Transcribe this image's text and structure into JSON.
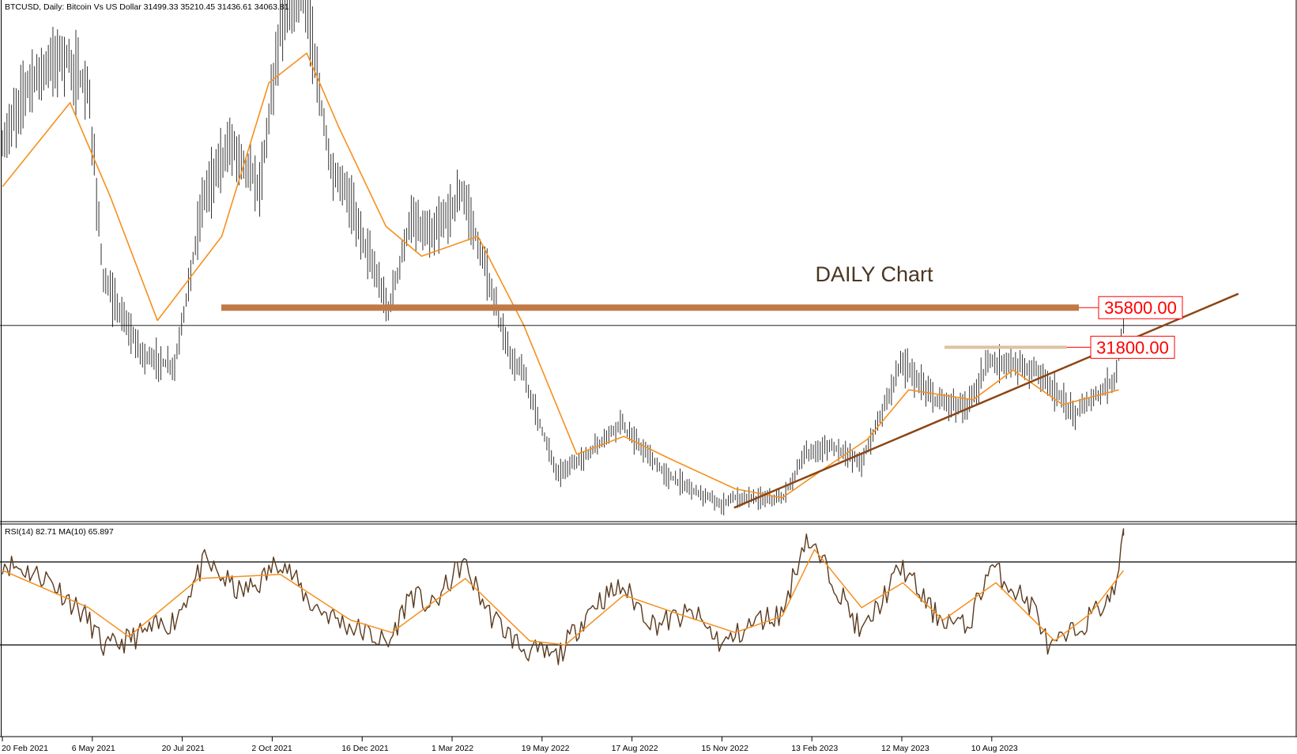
{
  "header": {
    "symbol_text": "BTCUSD, Daily:  Bitcoin Vs US Dollar  31499.33 35210.45 31436.61 34063.81"
  },
  "annotation": {
    "title": "DAILY Chart"
  },
  "levels": [
    {
      "label": "35800.00",
      "value": 35800,
      "color": "#c17a45"
    },
    {
      "label": "31800.00",
      "value": 31800,
      "color": "#dcc3a3"
    }
  ],
  "rsi_panel": {
    "header_text": "RSI(14) 82.71 MA(10) 65.897",
    "upper_level": 70,
    "lower_level": 30
  },
  "colors": {
    "bars": "#333333",
    "ma": "#f5901e",
    "trendline": "#8b4513",
    "rsi": "#5a3a1e",
    "label_text": "#ff0000"
  },
  "chart_data": {
    "type": "line",
    "x_tick_labels": [
      "20 Feb 2021",
      "6 May 2021",
      "20 Jul 2021",
      "2 Oct 2021",
      "16 Dec 2021",
      "1 Mar 2022",
      "19 May 2022",
      "17 Aug 2022",
      "15 Nov 2022",
      "13 Feb 2023",
      "12 May 2023",
      "10 Aug 2023"
    ],
    "price_series": {
      "dates": [
        "2021-02-20",
        "2021-03-14",
        "2021-04-14",
        "2021-05-06",
        "2021-05-19",
        "2021-06-22",
        "2021-07-20",
        "2021-08-14",
        "2021-09-07",
        "2021-10-02",
        "2021-10-20",
        "2021-11-10",
        "2021-12-04",
        "2021-12-16",
        "2022-01-22",
        "2022-02-10",
        "2022-03-01",
        "2022-03-28",
        "2022-05-09",
        "2022-05-19",
        "2022-06-18",
        "2022-07-15",
        "2022-08-14",
        "2022-08-17",
        "2022-09-20",
        "2022-11-09",
        "2022-11-15",
        "2022-12-31",
        "2023-01-20",
        "2023-02-13",
        "2023-03-10",
        "2023-04-14",
        "2023-05-12",
        "2023-06-10",
        "2023-06-30",
        "2023-08-10",
        "2023-09-11",
        "2023-10-16",
        "2023-10-24"
      ],
      "close": [
        52000,
        58500,
        61500,
        57500,
        38500,
        31000,
        29800,
        47000,
        52500,
        47800,
        64500,
        67500,
        49000,
        47800,
        35500,
        44500,
        43000,
        47500,
        30500,
        29300,
        19000,
        21000,
        24400,
        23300,
        19000,
        15800,
        16600,
        16500,
        21000,
        21800,
        20200,
        30300,
        26500,
        25800,
        30500,
        29500,
        25000,
        28500,
        34000
      ]
    },
    "ma_series": {
      "dates": [
        "2021-02-20",
        "2021-04-20",
        "2021-05-25",
        "2021-07-05",
        "2021-08-30",
        "2021-10-10",
        "2021-11-12",
        "2021-12-10",
        "2022-01-20",
        "2022-02-20",
        "2022-04-10",
        "2022-05-20",
        "2022-07-05",
        "2022-08-15",
        "2022-09-25",
        "2022-11-20",
        "2022-12-31",
        "2023-02-05",
        "2023-03-15",
        "2023-04-20",
        "2023-06-15",
        "2023-07-20",
        "2023-09-01",
        "2023-10-20"
      ],
      "values": [
        48000,
        56500,
        47000,
        34500,
        43000,
        58500,
        61500,
        54000,
        44000,
        41000,
        43000,
        34000,
        21000,
        22800,
        20500,
        17500,
        16600,
        19500,
        22500,
        27500,
        26500,
        29500,
        26000,
        27500
      ]
    },
    "trendline": {
      "from": [
        "2022-11-19",
        15600
      ],
      "to": [
        "2024-02-01",
        37200
      ]
    },
    "rsi": {
      "dates": [
        "2021-02-20",
        "2021-04-01",
        "2021-05-06",
        "2021-05-20",
        "2021-06-20",
        "2021-07-20",
        "2021-08-15",
        "2021-09-15",
        "2021-10-02",
        "2021-10-20",
        "2021-11-15",
        "2021-12-16",
        "2022-01-10",
        "2022-01-22",
        "2022-02-10",
        "2022-03-01",
        "2022-03-28",
        "2022-04-20",
        "2022-05-19",
        "2022-06-18",
        "2022-07-20",
        "2022-08-14",
        "2022-09-10",
        "2022-10-15",
        "2022-11-09",
        "2022-12-10",
        "2022-12-31",
        "2023-01-20",
        "2023-02-13",
        "2023-03-10",
        "2023-04-14",
        "2023-05-12",
        "2023-06-10",
        "2023-06-30",
        "2023-08-10",
        "2023-08-20",
        "2023-09-15",
        "2023-10-16",
        "2023-10-24"
      ],
      "values": [
        70,
        62,
        42,
        28,
        35,
        42,
        70,
        55,
        60,
        72,
        50,
        40,
        34,
        30,
        55,
        48,
        70,
        45,
        28,
        24,
        50,
        58,
        40,
        45,
        30,
        42,
        45,
        82,
        62,
        35,
        68,
        45,
        38,
        68,
        46,
        27,
        38,
        55,
        82.71
      ]
    },
    "rsi_ma": {
      "dates": [
        "2021-02-20",
        "2021-05-06",
        "2021-06-10",
        "2021-08-10",
        "2021-10-20",
        "2021-12-20",
        "2022-01-25",
        "2022-03-30",
        "2022-05-25",
        "2022-06-25",
        "2022-08-15",
        "2022-10-01",
        "2022-11-20",
        "2022-12-31",
        "2023-01-28",
        "2023-03-10",
        "2023-04-15",
        "2023-05-20",
        "2023-07-05",
        "2023-08-25",
        "2023-09-25",
        "2023-10-24"
      ],
      "values": [
        66,
        48,
        34,
        62,
        64,
        42,
        36,
        62,
        32,
        30,
        54,
        45,
        36,
        44,
        76,
        48,
        60,
        42,
        60,
        32,
        45,
        65.897
      ]
    }
  }
}
